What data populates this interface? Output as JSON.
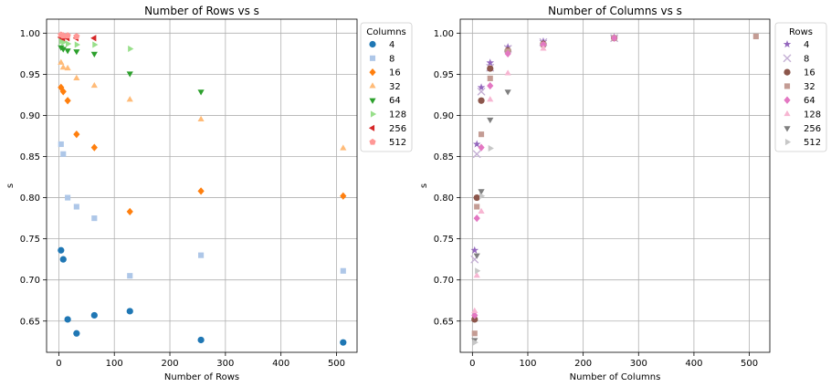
{
  "chart_data": [
    {
      "type": "scatter",
      "title": "Number of Rows vs s",
      "xlabel": "Number of Rows",
      "ylabel": "s",
      "xlim": [
        -22,
        537
      ],
      "ylim": [
        0.612,
        1.017
      ],
      "xticks": [
        0,
        100,
        200,
        300,
        400,
        500
      ],
      "yticks": [
        0.65,
        0.7,
        0.75,
        0.8,
        0.85,
        0.9,
        0.95,
        1.0
      ],
      "xtick_labels": [
        "0",
        "100",
        "200",
        "300",
        "400",
        "500"
      ],
      "ytick_labels": [
        "0.65",
        "0.70",
        "0.75",
        "0.80",
        "0.85",
        "0.90",
        "0.95",
        "1.00"
      ],
      "grid": true,
      "legend_title": "Columns",
      "legend_placement": "outside-right-top",
      "series": [
        {
          "name": "4",
          "marker": "circle",
          "color": "#1f77b4",
          "x": [
            4,
            8,
            16,
            32,
            64,
            128,
            256,
            512
          ],
          "y": [
            0.736,
            0.725,
            0.652,
            0.635,
            0.657,
            0.662,
            0.627,
            0.624
          ]
        },
        {
          "name": "8",
          "marker": "square",
          "color": "#aec7e8",
          "x": [
            4,
            8,
            16,
            32,
            64,
            128,
            256,
            512
          ],
          "y": [
            0.865,
            0.853,
            0.8,
            0.789,
            0.775,
            0.705,
            0.73,
            0.711
          ]
        },
        {
          "name": "16",
          "marker": "diamond",
          "color": "#ff7f0e",
          "x": [
            4,
            8,
            16,
            32,
            64,
            128,
            256,
            512
          ],
          "y": [
            0.934,
            0.929,
            0.918,
            0.877,
            0.861,
            0.783,
            0.808,
            0.802
          ]
        },
        {
          "name": "32",
          "marker": "triangle-up",
          "color": "#ffbb78",
          "x": [
            4,
            8,
            16,
            32,
            64,
            128,
            256,
            512
          ],
          "y": [
            0.964,
            0.958,
            0.957,
            0.945,
            0.936,
            0.919,
            0.895,
            0.86
          ]
        },
        {
          "name": "64",
          "marker": "triangle-down",
          "color": "#2ca02c",
          "x": [
            4,
            8,
            16,
            32,
            64,
            128,
            256
          ],
          "y": [
            0.983,
            0.981,
            0.979,
            0.978,
            0.975,
            0.951,
            0.929
          ]
        },
        {
          "name": "128",
          "marker": "triangle-right",
          "color": "#98df8a",
          "x": [
            4,
            8,
            16,
            32,
            64,
            128
          ],
          "y": [
            0.99,
            0.989,
            0.987,
            0.986,
            0.986,
            0.981
          ]
        },
        {
          "name": "256",
          "marker": "triangle-left",
          "color": "#d62728",
          "x": [
            4,
            8,
            16,
            32,
            64
          ],
          "y": [
            0.995,
            0.994,
            0.994,
            0.994,
            0.994
          ]
        },
        {
          "name": "512",
          "marker": "pentagon",
          "color": "#ff9896",
          "x": [
            4,
            8,
            16,
            32
          ],
          "y": [
            0.998,
            0.997,
            0.997,
            0.996
          ]
        }
      ]
    },
    {
      "type": "scatter",
      "title": "Number of Columns vs s",
      "xlabel": "Number of Columns",
      "ylabel": "s",
      "xlim": [
        -22,
        537
      ],
      "ylim": [
        0.612,
        1.017
      ],
      "xticks": [
        0,
        100,
        200,
        300,
        400,
        500
      ],
      "yticks": [
        0.65,
        0.7,
        0.75,
        0.8,
        0.85,
        0.9,
        0.95,
        1.0
      ],
      "xtick_labels": [
        "0",
        "100",
        "200",
        "300",
        "400",
        "500"
      ],
      "ytick_labels": [
        "0.65",
        "0.70",
        "0.75",
        "0.80",
        "0.85",
        "0.90",
        "0.95",
        "1.00"
      ],
      "grid": true,
      "legend_title": "Rows",
      "legend_placement": "outside-right-top",
      "series": [
        {
          "name": "4",
          "marker": "star",
          "color": "#9467bd",
          "x": [
            4,
            8,
            16,
            32,
            64,
            128,
            256
          ],
          "y": [
            0.736,
            0.865,
            0.934,
            0.964,
            0.983,
            0.99,
            0.995
          ]
        },
        {
          "name": "8",
          "marker": "x",
          "color": "#c5b0d5",
          "x": [
            4,
            8,
            16,
            32,
            64,
            128,
            256
          ],
          "y": [
            0.725,
            0.853,
            0.929,
            0.958,
            0.981,
            0.989,
            0.994
          ]
        },
        {
          "name": "16",
          "marker": "circle",
          "color": "#8c564b",
          "x": [
            4,
            8,
            16,
            32,
            64,
            128,
            256
          ],
          "y": [
            0.652,
            0.8,
            0.918,
            0.957,
            0.979,
            0.987,
            0.994
          ]
        },
        {
          "name": "32",
          "marker": "square",
          "color": "#c49c94",
          "x": [
            4,
            8,
            16,
            32,
            64,
            128,
            256,
            512
          ],
          "y": [
            0.635,
            0.789,
            0.877,
            0.945,
            0.978,
            0.986,
            0.994,
            0.996
          ]
        },
        {
          "name": "64",
          "marker": "diamond",
          "color": "#e377c2",
          "x": [
            4,
            8,
            16,
            32,
            64,
            128,
            256
          ],
          "y": [
            0.657,
            0.775,
            0.861,
            0.936,
            0.975,
            0.986,
            0.994
          ]
        },
        {
          "name": "128",
          "marker": "triangle-up",
          "color": "#f7b6d2",
          "x": [
            4,
            8,
            16,
            32,
            64,
            128
          ],
          "y": [
            0.662,
            0.705,
            0.783,
            0.919,
            0.951,
            0.981
          ]
        },
        {
          "name": "256",
          "marker": "triangle-down",
          "color": "#7f7f7f",
          "x": [
            4,
            8,
            16,
            32,
            64
          ],
          "y": [
            0.627,
            0.73,
            0.808,
            0.895,
            0.929
          ]
        },
        {
          "name": "512",
          "marker": "triangle-right",
          "color": "#c7c7c7",
          "x": [
            4,
            8,
            16,
            32
          ],
          "y": [
            0.624,
            0.711,
            0.802,
            0.86
          ]
        }
      ]
    }
  ]
}
